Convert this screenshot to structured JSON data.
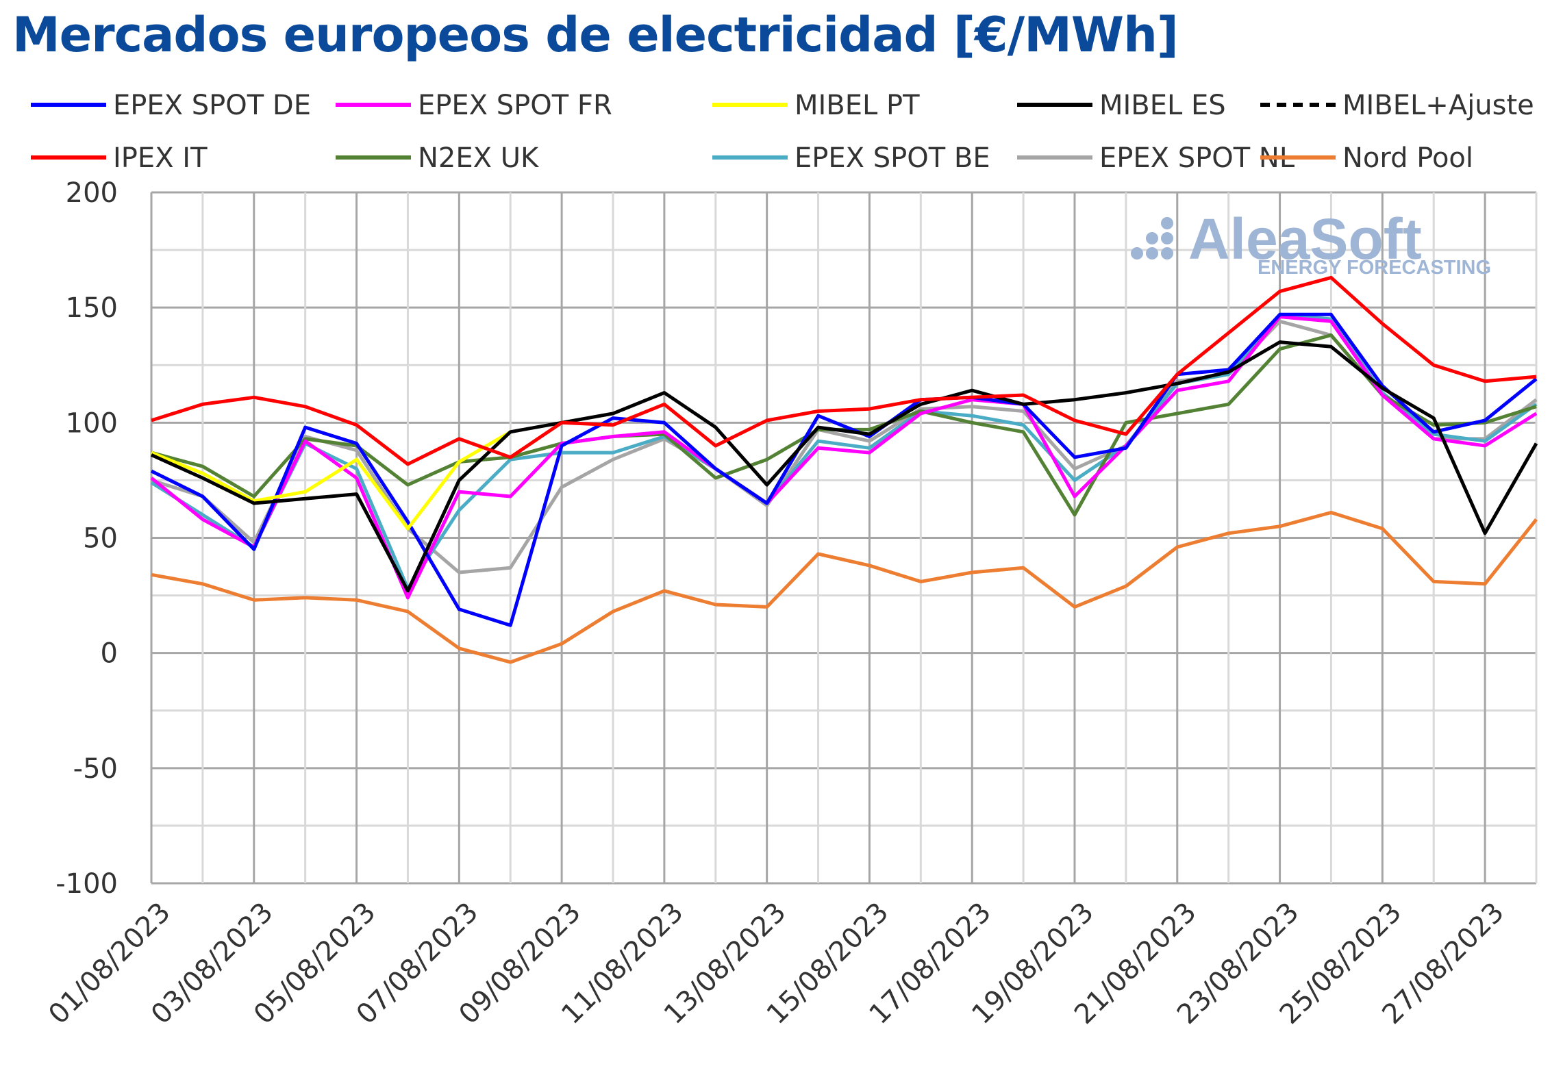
{
  "chart_data": {
    "type": "line",
    "title": "Mercados europeos de electricidad [€/MWh]",
    "xlabel": "",
    "ylabel": "",
    "ylim": [
      -100,
      200
    ],
    "yticks": [
      -100,
      -50,
      0,
      50,
      100,
      150,
      200
    ],
    "grid": true,
    "legend_position": "top",
    "watermark": {
      "name": "AleaSoft",
      "sub": "ENERGY FORECASTING"
    },
    "x": [
      "01/08/2023",
      "02/08/2023",
      "03/08/2023",
      "04/08/2023",
      "05/08/2023",
      "06/08/2023",
      "07/08/2023",
      "08/08/2023",
      "09/08/2023",
      "10/08/2023",
      "11/08/2023",
      "12/08/2023",
      "13/08/2023",
      "14/08/2023",
      "15/08/2023",
      "16/08/2023",
      "17/08/2023",
      "18/08/2023",
      "19/08/2023",
      "20/08/2023",
      "21/08/2023",
      "22/08/2023",
      "23/08/2023",
      "24/08/2023",
      "25/08/2023",
      "26/08/2023",
      "27/08/2023",
      "28/08/2023"
    ],
    "xtick_labels": [
      "01/08/2023",
      "03/08/2023",
      "05/08/2023",
      "07/08/2023",
      "09/08/2023",
      "11/08/2023",
      "13/08/2023",
      "15/08/2023",
      "17/08/2023",
      "19/08/2023",
      "21/08/2023",
      "23/08/2023",
      "25/08/2023",
      "27/08/2023"
    ],
    "series": [
      {
        "name": "EPEX SPOT DE",
        "color": "#0000ff",
        "dash": false,
        "values": [
          79,
          68,
          45,
          98,
          91,
          57,
          19,
          12,
          90,
          102,
          100,
          80,
          65,
          103,
          94,
          110,
          111,
          108,
          85,
          89,
          121,
          123,
          147,
          147,
          116,
          96,
          101,
          119
        ]
      },
      {
        "name": "EPEX SPOT FR",
        "color": "#ff00ff",
        "dash": false,
        "values": [
          76,
          58,
          46,
          92,
          76,
          24,
          70,
          68,
          91,
          94,
          96,
          80,
          65,
          89,
          87,
          104,
          110,
          108,
          68,
          90,
          114,
          118,
          146,
          144,
          112,
          93,
          90,
          104
        ]
      },
      {
        "name": "MIBEL PT",
        "color": "#ffff00",
        "dash": false,
        "values": [
          87,
          78,
          66,
          70,
          84,
          54,
          83,
          96,
          null,
          null,
          null,
          null,
          null,
          null,
          null,
          null,
          null,
          null,
          null,
          null,
          null,
          null,
          null,
          null,
          null,
          null,
          null,
          null
        ]
      },
      {
        "name": "MIBEL ES",
        "color": "#000000",
        "dash": false,
        "values": [
          86,
          76,
          65,
          67,
          69,
          27,
          75,
          96,
          100,
          104,
          113,
          98,
          73,
          98,
          95,
          108,
          114,
          108,
          110,
          113,
          117,
          122,
          135,
          133,
          115,
          102,
          52,
          91
        ]
      },
      {
        "name": "MIBEL+Ajuste",
        "color": "#000000",
        "dash": true,
        "values": []
      },
      {
        "name": "IPEX IT",
        "color": "#ff0000",
        "dash": false,
        "values": [
          101,
          108,
          111,
          107,
          99,
          82,
          93,
          85,
          100,
          99,
          108,
          90,
          101,
          105,
          106,
          110,
          111,
          112,
          101,
          95,
          121,
          139,
          157,
          163,
          143,
          125,
          118,
          120
        ]
      },
      {
        "name": "N2EX UK",
        "color": "#548235",
        "dash": false,
        "values": [
          87,
          81,
          68,
          93,
          90,
          73,
          83,
          85,
          91,
          94,
          95,
          76,
          84,
          97,
          97,
          105,
          100,
          96,
          60,
          100,
          104,
          108,
          132,
          138,
          112,
          99,
          100,
          107
        ]
      },
      {
        "name": "EPEX SPOT BE",
        "color": "#4bacc6",
        "dash": false,
        "values": [
          74,
          60,
          46,
          91,
          80,
          28,
          62,
          84,
          87,
          87,
          94,
          80,
          65,
          92,
          89,
          105,
          103,
          99,
          75,
          90,
          117,
          121,
          147,
          145,
          113,
          95,
          92,
          108
        ]
      },
      {
        "name": "EPEX SPOT NL",
        "color": "#a5a5a5",
        "dash": false,
        "values": [
          75,
          68,
          48,
          94,
          88,
          54,
          35,
          37,
          72,
          84,
          93,
          80,
          64,
          97,
          92,
          106,
          107,
          105,
          80,
          90,
          118,
          121,
          144,
          138,
          112,
          93,
          93,
          110
        ]
      },
      {
        "name": "Nord Pool",
        "color": "#ed7d31",
        "dash": false,
        "values": [
          34,
          30,
          23,
          24,
          23,
          18,
          2,
          -4,
          4,
          18,
          27,
          21,
          20,
          43,
          38,
          31,
          35,
          37,
          20,
          29,
          46,
          52,
          55,
          61,
          54,
          31,
          30,
          58
        ]
      }
    ]
  }
}
